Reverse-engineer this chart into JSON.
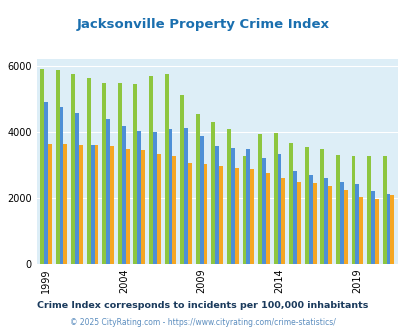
{
  "title": "Jacksonville Property Crime Index",
  "title_color": "#1a6faf",
  "subtitle": "Crime Index corresponds to incidents per 100,000 inhabitants",
  "subtitle_color": "#1a3a5c",
  "copyright": "© 2025 CityRating.com - https://www.cityrating.com/crime-statistics/",
  "copyright_color": "#5b8dbf",
  "years": [
    1999,
    2000,
    2001,
    2002,
    2003,
    2004,
    2005,
    2006,
    2007,
    2008,
    2009,
    2010,
    2011,
    2012,
    2013,
    2014,
    2015,
    2016,
    2017,
    2018,
    2019,
    2020,
    2021
  ],
  "jacksonville": [
    5900,
    5870,
    5750,
    5650,
    5480,
    5490,
    5460,
    5700,
    5760,
    5130,
    4550,
    4300,
    4100,
    3270,
    3940,
    3960,
    3660,
    3560,
    3490,
    3300,
    3280,
    3280,
    3280
  ],
  "florida": [
    4920,
    4760,
    4580,
    3620,
    4390,
    4170,
    4020,
    4000,
    4100,
    4130,
    3890,
    3570,
    3510,
    3490,
    3210,
    3330,
    2810,
    2700,
    2600,
    2470,
    2430,
    2220,
    2130
  ],
  "national": [
    3640,
    3650,
    3620,
    3620,
    3590,
    3490,
    3440,
    3320,
    3260,
    3050,
    3020,
    2960,
    2910,
    2870,
    2760,
    2600,
    2490,
    2450,
    2360,
    2230,
    2020,
    1960,
    2080
  ],
  "jacksonville_color": "#8dc63f",
  "florida_color": "#4d8fd6",
  "national_color": "#f5a623",
  "bg_color": "#ddeef7",
  "ylim": [
    0,
    6200
  ],
  "yticks": [
    0,
    2000,
    4000,
    6000
  ],
  "bar_width": 0.25,
  "xlabel_ticks": [
    1999,
    2004,
    2009,
    2014,
    2019
  ],
  "figsize": [
    4.06,
    3.3
  ],
  "dpi": 100
}
